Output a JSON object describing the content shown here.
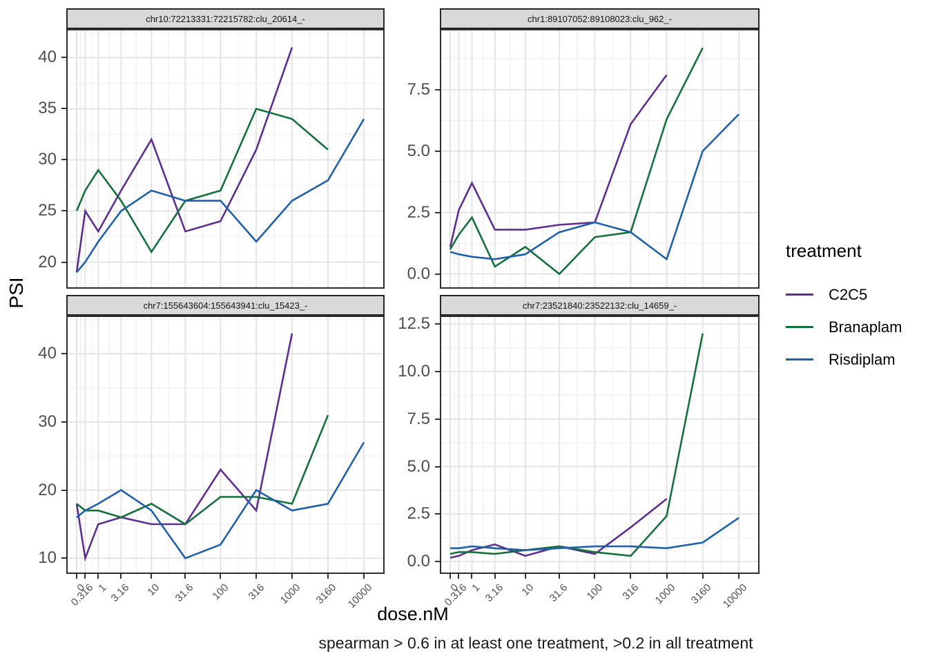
{
  "axis": {
    "y_title": "PSI",
    "x_title": "dose.nM"
  },
  "caption": "spearman > 0.6 in at least one treatment, >0.2 in all treatment",
  "legend": {
    "title": "treatment",
    "entries": [
      {
        "label": "C2C5",
        "color": "#5D2D8F"
      },
      {
        "label": "Branaplam",
        "color": "#156F3C"
      },
      {
        "label": "Risdiplam",
        "color": "#2060A9"
      }
    ]
  },
  "chart_data": {
    "type": "line",
    "x_scale": "log10(dose+1)",
    "xlabel": "dose.nM",
    "ylabel": "PSI",
    "legend_position": "right",
    "grid": "on",
    "doses": [
      0,
      0.316,
      1,
      3.16,
      10,
      31.6,
      100,
      316,
      1000,
      3160,
      10000
    ],
    "dose_labels": [
      "0",
      "0.316",
      "1",
      "3.16",
      "10",
      "31.6",
      "100",
      "316",
      "1000",
      "3160",
      "10000"
    ],
    "panels": [
      {
        "title": "chr10:72213331:72215782:clu_20614_-",
        "ytick_values": [
          20,
          25,
          30,
          35,
          40
        ],
        "ytick_labels": [
          "20",
          "25",
          "30",
          "35",
          "40"
        ],
        "ydomain": [
          17.4,
          42.8
        ],
        "series": [
          {
            "name": "C2C5",
            "values": [
              19,
              25,
              23,
              27,
              32,
              23,
              24,
              31,
              41,
              null,
              null
            ]
          },
          {
            "name": "Branaplam",
            "values": [
              25,
              27,
              29,
              26,
              21,
              26,
              27,
              35,
              34,
              31,
              null
            ]
          },
          {
            "name": "Risdiplam",
            "values": [
              19,
              20,
              22,
              25,
              27,
              26,
              26,
              22,
              26,
              28,
              34
            ]
          }
        ]
      },
      {
        "title": "chr1:89107052:89108023:clu_962_-",
        "ytick_values": [
          0.0,
          2.5,
          5.0,
          7.5
        ],
        "ytick_labels": [
          "0.0",
          "2.5",
          "5.0",
          "7.5"
        ],
        "ydomain": [
          -0.6,
          9.97
        ],
        "series": [
          {
            "name": "C2C5",
            "values": [
              1.1,
              2.6,
              3.7,
              1.8,
              1.8,
              2.0,
              2.1,
              6.1,
              8.1,
              null,
              null
            ]
          },
          {
            "name": "Branaplam",
            "values": [
              1.0,
              1.6,
              2.3,
              0.3,
              1.1,
              0.0,
              1.5,
              1.7,
              6.3,
              9.2,
              null
            ]
          },
          {
            "name": "Risdiplam",
            "values": [
              0.9,
              0.8,
              0.7,
              0.6,
              0.8,
              1.7,
              2.1,
              1.7,
              0.6,
              5.0,
              6.5
            ]
          }
        ]
      },
      {
        "title": "chr7:155643604:155643941:clu_15423_-",
        "ytick_values": [
          10,
          20,
          30,
          40
        ],
        "ytick_labels": [
          "10",
          "20",
          "30",
          "40"
        ],
        "ydomain": [
          7.7,
          45.6
        ],
        "series": [
          {
            "name": "C2C5",
            "values": [
              18,
              10,
              15,
              16,
              15,
              15,
              23,
              17,
              43,
              null,
              null
            ]
          },
          {
            "name": "Branaplam",
            "values": [
              18,
              17,
              17,
              16,
              18,
              15,
              19,
              19,
              18,
              31,
              null
            ]
          },
          {
            "name": "Risdiplam",
            "values": [
              16,
              17,
              18,
              20,
              17,
              10,
              12,
              20,
              17,
              18,
              27
            ]
          }
        ]
      },
      {
        "title": "chr7:23521840:23522132:clu_14659_-",
        "ytick_values": [
          0.0,
          2.5,
          5.0,
          7.5,
          10.0,
          12.5
        ],
        "ytick_labels": [
          "0.0",
          "2.5",
          "5.0",
          "7.5",
          "10.0",
          "12.5"
        ],
        "ydomain": [
          -0.65,
          12.94
        ],
        "series": [
          {
            "name": "C2C5",
            "values": [
              0.2,
              0.3,
              0.6,
              0.9,
              0.3,
              0.8,
              0.4,
              1.8,
              3.3,
              null,
              null
            ]
          },
          {
            "name": "Branaplam",
            "values": [
              0.4,
              0.5,
              0.5,
              0.4,
              0.6,
              0.8,
              0.5,
              0.3,
              2.4,
              12.0,
              null
            ]
          },
          {
            "name": "Risdiplam",
            "values": [
              0.7,
              0.7,
              0.8,
              0.7,
              0.6,
              0.7,
              0.8,
              0.8,
              0.7,
              1.0,
              2.3
            ]
          }
        ]
      }
    ]
  }
}
